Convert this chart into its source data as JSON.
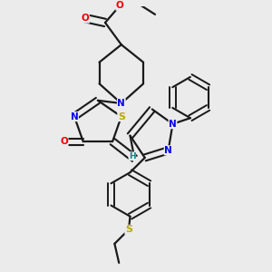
{
  "background_color": "#ebebeb",
  "bond_color": "#1a1a1a",
  "atom_colors": {
    "N": "#0000ee",
    "O": "#ee0000",
    "S": "#bbaa00",
    "H": "#008888",
    "C": "#1a1a1a"
  },
  "figsize": [
    3.0,
    3.0
  ],
  "dpi": 100
}
